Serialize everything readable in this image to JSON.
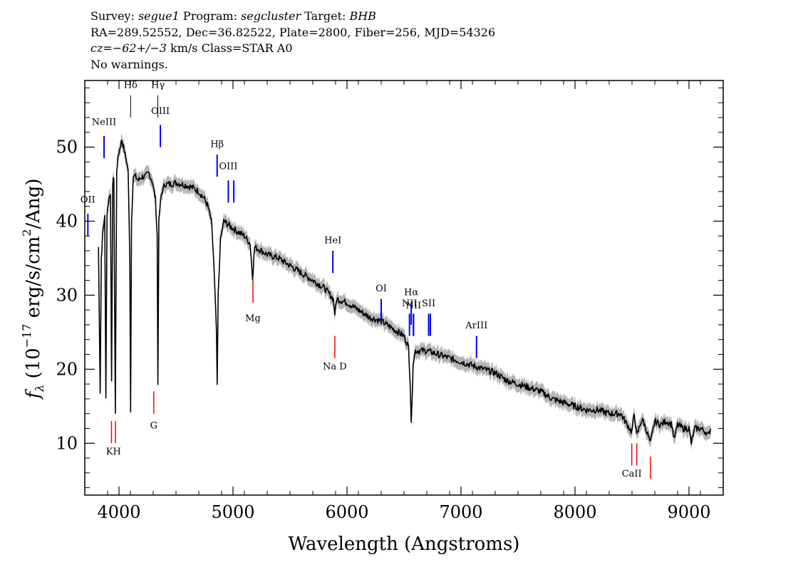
{
  "header": {
    "survey_label": "Survey:",
    "survey": "segue1",
    "program_label": "Program:",
    "program": "segcluster",
    "target_label": "Target:",
    "target": "BHB",
    "line2": "RA=289.52552, Dec=36.82522, Plate=2800, Fiber=256, MJD=54326",
    "cz_label": "cz=",
    "cz_value": "−62+/−3",
    "cz_rest": " km/s Class=STAR A0",
    "warnings": "No warnings."
  },
  "chart_data": {
    "type": "line",
    "xlabel": "Wavelength (Angstroms)",
    "ylabel": "f_λ (10^-17 erg/s/cm^2/Ang)",
    "xlim": [
      3700,
      9300
    ],
    "ylim": [
      3,
      59
    ],
    "x_ticks": [
      4000,
      5000,
      6000,
      7000,
      8000,
      9000
    ],
    "y_ticks": [
      10,
      20,
      30,
      40,
      50
    ],
    "grid": false,
    "series": [
      {
        "color": "#000000",
        "error_color": "#b4b4b4",
        "points": [
          [
            3820,
            36.5
          ],
          [
            3835,
            17
          ],
          [
            3845,
            35
          ],
          [
            3860,
            39
          ],
          [
            3875,
            40.5
          ],
          [
            3885,
            16.5
          ],
          [
            3895,
            41
          ],
          [
            3910,
            43
          ],
          [
            3925,
            44
          ],
          [
            3935,
            18
          ],
          [
            3945,
            45
          ],
          [
            3955,
            46
          ],
          [
            3968,
            14
          ],
          [
            3980,
            47
          ],
          [
            3995,
            49
          ],
          [
            4010,
            50
          ],
          [
            4025,
            51
          ],
          [
            4040,
            50
          ],
          [
            4060,
            48.5
          ],
          [
            4080,
            47
          ],
          [
            4095,
            35
          ],
          [
            4102,
            14.5
          ],
          [
            4110,
            40
          ],
          [
            4125,
            46
          ],
          [
            4145,
            46
          ],
          [
            4170,
            45.5
          ],
          [
            4200,
            46
          ],
          [
            4230,
            46
          ],
          [
            4260,
            46.5
          ],
          [
            4290,
            45.5
          ],
          [
            4320,
            43
          ],
          [
            4335,
            38
          ],
          [
            4341,
            18
          ],
          [
            4350,
            40
          ],
          [
            4370,
            43.5
          ],
          [
            4400,
            45
          ],
          [
            4450,
            45
          ],
          [
            4500,
            45.2
          ],
          [
            4550,
            45
          ],
          [
            4600,
            44.8
          ],
          [
            4650,
            44.5
          ],
          [
            4700,
            44
          ],
          [
            4750,
            43
          ],
          [
            4780,
            42
          ],
          [
            4810,
            40
          ],
          [
            4830,
            35
          ],
          [
            4855,
            25
          ],
          [
            4861,
            17.5
          ],
          [
            4870,
            30
          ],
          [
            4890,
            37.5
          ],
          [
            4920,
            40
          ],
          [
            4960,
            39.5
          ],
          [
            5000,
            39
          ],
          [
            5050,
            38.5
          ],
          [
            5100,
            38
          ],
          [
            5150,
            37
          ],
          [
            5172,
            32.5
          ],
          [
            5190,
            36.5
          ],
          [
            5250,
            36
          ],
          [
            5300,
            35.5
          ],
          [
            5400,
            35
          ],
          [
            5500,
            34
          ],
          [
            5600,
            33
          ],
          [
            5700,
            32
          ],
          [
            5800,
            31
          ],
          [
            5880,
            29.5
          ],
          [
            5893,
            27.5
          ],
          [
            5910,
            29.5
          ],
          [
            6000,
            29
          ],
          [
            6100,
            28
          ],
          [
            6200,
            27
          ],
          [
            6300,
            26.5
          ],
          [
            6400,
            25.5
          ],
          [
            6500,
            24.5
          ],
          [
            6540,
            23
          ],
          [
            6555,
            18
          ],
          [
            6563,
            13
          ],
          [
            6570,
            15
          ],
          [
            6580,
            21
          ],
          [
            6600,
            22.5
          ],
          [
            6700,
            22.5
          ],
          [
            6800,
            22
          ],
          [
            6900,
            21.5
          ],
          [
            7000,
            21
          ],
          [
            7100,
            20.5
          ],
          [
            7200,
            20
          ],
          [
            7300,
            19.5
          ],
          [
            7400,
            18.5
          ],
          [
            7500,
            18
          ],
          [
            7600,
            17.5
          ],
          [
            7700,
            17
          ],
          [
            7800,
            16
          ],
          [
            7900,
            15.5
          ],
          [
            8000,
            15
          ],
          [
            8100,
            14.5
          ],
          [
            8200,
            14.5
          ],
          [
            8300,
            14
          ],
          [
            8400,
            14
          ],
          [
            8498,
            11.5
          ],
          [
            8520,
            14
          ],
          [
            8542,
            11
          ],
          [
            8580,
            13
          ],
          [
            8600,
            13
          ],
          [
            8662,
            10
          ],
          [
            8700,
            13
          ],
          [
            8750,
            12.5
          ],
          [
            8800,
            13
          ],
          [
            8850,
            12.5
          ],
          [
            8870,
            10.5
          ],
          [
            8900,
            12.5
          ],
          [
            8950,
            12
          ],
          [
            9000,
            12
          ],
          [
            9020,
            10
          ],
          [
            9050,
            12
          ],
          [
            9100,
            12
          ],
          [
            9150,
            11.5
          ],
          [
            9170,
            11
          ],
          [
            9190,
            12
          ]
        ]
      }
    ],
    "emission_lines": [
      {
        "label": "NeIII",
        "wl": 3869,
        "y1": 48.5,
        "y2": 51.5,
        "label_y": 53
      },
      {
        "label": "OII",
        "wl": 3727,
        "y1": 38,
        "y2": 41,
        "label_y": 42.5
      },
      {
        "label": "Hδ",
        "wl": 4102,
        "y1": 54,
        "y2": 57,
        "label_y": 58
      },
      {
        "label": "Hγ",
        "wl": 4341,
        "y1": 54,
        "y2": 57,
        "label_y": 58
      },
      {
        "label": "OIII",
        "wl": 4363,
        "y1": 50,
        "y2": 53,
        "label_y": 54.5
      },
      {
        "label": "Hβ",
        "wl": 4861,
        "y1": 46,
        "y2": 49,
        "label_y": 50
      },
      {
        "label": "OIII",
        "wl": 4959,
        "y1": 42.5,
        "y2": 45.5,
        "label_y": 47
      },
      {
        "label": "",
        "wl": 5007,
        "y1": 42.5,
        "y2": 45.5
      },
      {
        "label": "HeI",
        "wl": 5876,
        "y1": 33,
        "y2": 36,
        "label_y": 37
      },
      {
        "label": "OI",
        "wl": 6300,
        "y1": 26.5,
        "y2": 29.5,
        "label_y": 30.5
      },
      {
        "label": "NII",
        "wl": 6548,
        "y1": 24.5,
        "y2": 27.5,
        "label_y": 28.5
      },
      {
        "label": "Hα",
        "wl": 6563,
        "y1": 26,
        "y2": 29,
        "label_y": 30
      },
      {
        "label": "",
        "wl": 6583,
        "y1": 24.5,
        "y2": 27.5
      },
      {
        "label": "NII",
        "wl": 6583,
        "y1": 24.5,
        "y2": 27.5,
        "label_y": 28.2
      },
      {
        "label": "SII",
        "wl": 6716,
        "y1": 24.5,
        "y2": 27.5,
        "label_y": 28.5
      },
      {
        "label": "",
        "wl": 6731,
        "y1": 24.5,
        "y2": 27.5
      },
      {
        "label": "ArIII",
        "wl": 7136,
        "y1": 21.5,
        "y2": 24.5,
        "label_y": 25.5
      }
    ],
    "absorption_lines": [
      {
        "label": "K",
        "wl": 3934,
        "y1": 10,
        "y2": 13
      },
      {
        "label": "H",
        "wl": 3969,
        "y1": 10,
        "y2": 13
      },
      {
        "label": "G",
        "wl": 4305,
        "y1": 14,
        "y2": 17,
        "label_y": 12
      },
      {
        "label": "Mg",
        "wl": 5175,
        "y1": 29,
        "y2": 32,
        "label_y": 26.5
      },
      {
        "label": "Na  D",
        "wl": 5893,
        "y1": 21.5,
        "y2": 24.5,
        "label_y": 20
      },
      {
        "label": "CaII",
        "wl": 8498,
        "y1": 7,
        "y2": 10,
        "label_y": 5.5
      },
      {
        "label": "",
        "wl": 8542,
        "y1": 7,
        "y2": 10
      },
      {
        "label": "",
        "wl": 8662,
        "y1": 5.2,
        "y2": 8.2
      }
    ],
    "kh_label": "KH",
    "colors": {
      "emission": "#0000ff",
      "absorption": "#ff0000",
      "marker_dark": "#000000"
    }
  }
}
